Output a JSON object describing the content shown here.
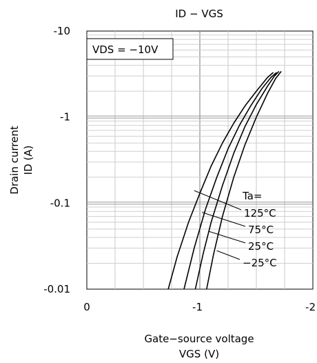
{
  "chart_data": {
    "type": "line",
    "title": "ID − VGS",
    "xlabel_line1": "Gate−source voltage",
    "xlabel_line2": "VGS (V)",
    "ylabel_line1": "Drain current",
    "ylabel_line2": "ID (A)",
    "condition": "VDS = −10V",
    "legend_title": "Ta=",
    "x_scale": "linear",
    "y_scale": "log",
    "xlim": [
      0,
      -2
    ],
    "ylim": [
      -0.01,
      -10
    ],
    "x_ticks": [
      {
        "value": 0,
        "label": "0"
      },
      {
        "value": -1,
        "label": "-1"
      },
      {
        "value": -2,
        "label": "-2"
      }
    ],
    "y_ticks": [
      {
        "value": -10,
        "label": "-10"
      },
      {
        "value": -1,
        "label": "-1"
      },
      {
        "value": -0.1,
        "label": "-0.1"
      },
      {
        "value": -0.01,
        "label": "-0.01"
      }
    ],
    "grid": true,
    "series": [
      {
        "name": "125°C",
        "x": [
          -0.72,
          -0.8,
          -0.9,
          -1.0,
          -1.1,
          -1.2,
          -1.3,
          -1.4,
          -1.5,
          -1.6,
          -1.65
        ],
        "y": [
          -0.01,
          -0.024,
          -0.06,
          -0.13,
          -0.27,
          -0.5,
          -0.85,
          -1.35,
          -2.0,
          -2.9,
          -3.3
        ]
      },
      {
        "name": "75°C",
        "x": [
          -0.86,
          -0.95,
          -1.05,
          -1.15,
          -1.25,
          -1.35,
          -1.45,
          -1.55,
          -1.63,
          -1.68
        ],
        "y": [
          -0.01,
          -0.03,
          -0.085,
          -0.2,
          -0.43,
          -0.8,
          -1.35,
          -2.15,
          -2.9,
          -3.3
        ]
      },
      {
        "name": "25°C",
        "x": [
          -0.96,
          -1.03,
          -1.1,
          -1.2,
          -1.3,
          -1.4,
          -1.5,
          -1.6,
          -1.66,
          -1.7
        ],
        "y": [
          -0.01,
          -0.026,
          -0.06,
          -0.16,
          -0.38,
          -0.78,
          -1.4,
          -2.3,
          -3.0,
          -3.4
        ]
      },
      {
        "name": "−25°C",
        "x": [
          -1.06,
          -1.12,
          -1.2,
          -1.3,
          -1.4,
          -1.5,
          -1.6,
          -1.67,
          -1.72
        ],
        "y": [
          -0.01,
          -0.025,
          -0.07,
          -0.2,
          -0.48,
          -1.0,
          -1.9,
          -2.8,
          -3.4
        ]
      }
    ],
    "label_anchors": [
      {
        "x": -0.95,
        "y": -0.14
      },
      {
        "x": -1.02,
        "y": -0.078
      },
      {
        "x": -1.08,
        "y": -0.047
      },
      {
        "x": -1.15,
        "y": -0.028
      }
    ]
  }
}
